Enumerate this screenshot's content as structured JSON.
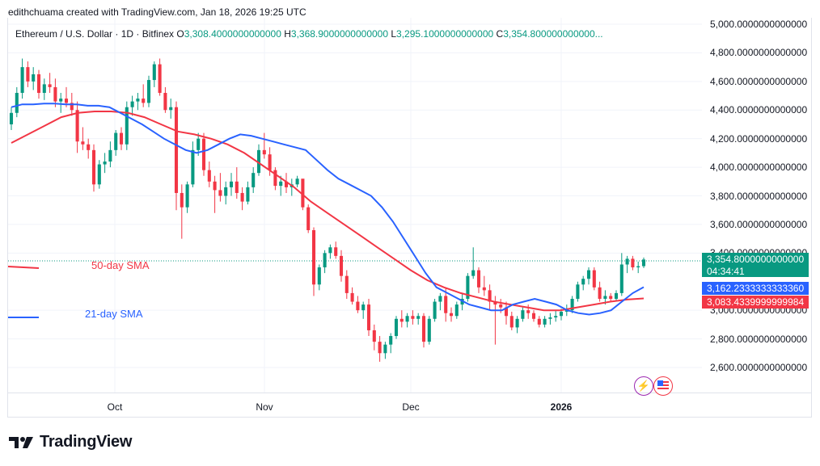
{
  "header": {
    "credit": "edithchuama created with TradingView.com, Jan 18, 2026 19:25 UTC"
  },
  "legend": {
    "symbol": "Ethereum / U.S. Dollar · 1D · Bitfinex",
    "o_label": "O",
    "o_value": "3,308.4000000000000",
    "h_label": "H",
    "h_value": "3,368.9000000000000",
    "l_label": "L",
    "l_value": "3,295.1000000000000",
    "c_label": "C",
    "c_value": "3,354.800000000000..."
  },
  "sma_labels": {
    "sma50": "50-day SMA",
    "sma21": "21-day SMA"
  },
  "price_tags": {
    "last_price": "3,354.8000000000000",
    "countdown": "04:34:41",
    "sma21_value": "3,162.2333333333360",
    "sma50_value": "3,083.4339999999984"
  },
  "colors": {
    "up": "#089981",
    "down": "#f23645",
    "sma21": "#2962ff",
    "sma50": "#f23645",
    "grid": "#f0f3fa"
  },
  "icons": {
    "lightning": "lightning-icon",
    "flag": "us-flag-icon"
  },
  "brand": {
    "logo_text": "TradingView"
  },
  "chart_data": {
    "type": "candlestick",
    "title": "Ethereum / U.S. Dollar · 1D · Bitfinex",
    "ylim": [
      2500,
      5000
    ],
    "y_ticks": [
      "5,000.0000000000000",
      "4,800.0000000000000",
      "4,600.0000000000000",
      "4,400.0000000000000",
      "4,200.0000000000000",
      "4,000.0000000000000",
      "3,800.0000000000000",
      "3,600.0000000000000",
      "3,400.0000000000000",
      "3,000.0000000000000",
      "2,800.0000000000000",
      "2,600.0000000000000"
    ],
    "x_ticks": [
      "Oct",
      "Nov",
      "Dec",
      "2026"
    ],
    "candles": [
      [
        4300,
        4420,
        4260,
        4380
      ],
      [
        4380,
        4560,
        4350,
        4520
      ],
      [
        4520,
        4760,
        4480,
        4700
      ],
      [
        4700,
        4740,
        4560,
        4600
      ],
      [
        4600,
        4700,
        4540,
        4650
      ],
      [
        4650,
        4680,
        4480,
        4520
      ],
      [
        4520,
        4620,
        4470,
        4580
      ],
      [
        4580,
        4660,
        4520,
        4560
      ],
      [
        4560,
        4620,
        4420,
        4460
      ],
      [
        4460,
        4520,
        4380,
        4480
      ],
      [
        4480,
        4560,
        4420,
        4450
      ],
      [
        4450,
        4520,
        4360,
        4400
      ],
      [
        4400,
        4460,
        4100,
        4180
      ],
      [
        4180,
        4280,
        4120,
        4160
      ],
      [
        4160,
        4200,
        4060,
        4120
      ],
      [
        4120,
        4160,
        3830,
        3880
      ],
      [
        3880,
        4050,
        3850,
        4020
      ],
      [
        4020,
        4100,
        3960,
        4040
      ],
      [
        4040,
        4180,
        4000,
        4120
      ],
      [
        4120,
        4260,
        4080,
        4240
      ],
      [
        4240,
        4280,
        4120,
        4160
      ],
      [
        4160,
        4460,
        4120,
        4420
      ],
      [
        4420,
        4500,
        4360,
        4460
      ],
      [
        4460,
        4520,
        4400,
        4480
      ],
      [
        4480,
        4580,
        4420,
        4450
      ],
      [
        4450,
        4640,
        4420,
        4610
      ],
      [
        4610,
        4740,
        4560,
        4720
      ],
      [
        4720,
        4760,
        4500,
        4520
      ],
      [
        4520,
        4560,
        4380,
        4400
      ],
      [
        4400,
        4480,
        4340,
        4420
      ],
      [
        4420,
        4460,
        3700,
        3820
      ],
      [
        3820,
        3880,
        3500,
        3720
      ],
      [
        3720,
        3900,
        3680,
        3880
      ],
      [
        3880,
        4180,
        3860,
        4120
      ],
      [
        4120,
        4240,
        4080,
        4200
      ],
      [
        4200,
        4240,
        3940,
        3980
      ],
      [
        3980,
        4040,
        3860,
        3900
      ],
      [
        3900,
        3940,
        3680,
        3840
      ],
      [
        3840,
        3960,
        3760,
        3800
      ],
      [
        3800,
        3900,
        3740,
        3860
      ],
      [
        3860,
        3960,
        3800,
        3900
      ],
      [
        3900,
        4000,
        3780,
        3820
      ],
      [
        3820,
        3860,
        3700,
        3760
      ],
      [
        3760,
        3900,
        3740,
        3860
      ],
      [
        3860,
        4000,
        3820,
        3960
      ],
      [
        3960,
        4160,
        3940,
        4120
      ],
      [
        4120,
        4240,
        4060,
        4090
      ],
      [
        4090,
        4140,
        3940,
        3980
      ],
      [
        3980,
        4000,
        3840,
        3870
      ],
      [
        3870,
        3940,
        3800,
        3900
      ],
      [
        3900,
        3960,
        3820,
        3860
      ],
      [
        3860,
        3920,
        3800,
        3880
      ],
      [
        3880,
        3940,
        3860,
        3920
      ],
      [
        3920,
        3900,
        3700,
        3720
      ],
      [
        3720,
        3740,
        3540,
        3560
      ],
      [
        3560,
        3580,
        3100,
        3180
      ],
      [
        3180,
        3320,
        3140,
        3300
      ],
      [
        3300,
        3420,
        3260,
        3400
      ],
      [
        3400,
        3460,
        3360,
        3440
      ],
      [
        3440,
        3480,
        3360,
        3380
      ],
      [
        3380,
        3420,
        3200,
        3240
      ],
      [
        3240,
        3280,
        3080,
        3120
      ],
      [
        3120,
        3160,
        3040,
        3060
      ],
      [
        3060,
        3100,
        2980,
        3000
      ],
      [
        3000,
        3060,
        2940,
        3040
      ],
      [
        3040,
        3080,
        2820,
        2860
      ],
      [
        2860,
        2900,
        2720,
        2780
      ],
      [
        2780,
        2820,
        2640,
        2700
      ],
      [
        2700,
        2780,
        2660,
        2760
      ],
      [
        2760,
        2840,
        2700,
        2820
      ],
      [
        2820,
        2960,
        2800,
        2940
      ],
      [
        2940,
        3000,
        2880,
        2920
      ],
      [
        2920,
        2980,
        2880,
        2960
      ],
      [
        2960,
        3000,
        2900,
        2940
      ],
      [
        2940,
        2980,
        2900,
        2960
      ],
      [
        2960,
        2980,
        2740,
        2780
      ],
      [
        2780,
        2960,
        2760,
        2940
      ],
      [
        2940,
        3080,
        2920,
        3060
      ],
      [
        3060,
        3120,
        3000,
        3100
      ],
      [
        3100,
        3160,
        2920,
        2980
      ],
      [
        2980,
        3020,
        2920,
        2960
      ],
      [
        2960,
        3060,
        2940,
        3040
      ],
      [
        3040,
        3120,
        3000,
        3080
      ],
      [
        3080,
        3260,
        3060,
        3240
      ],
      [
        3240,
        3440,
        3220,
        3280
      ],
      [
        3280,
        3300,
        3120,
        3160
      ],
      [
        3160,
        3240,
        3100,
        3140
      ],
      [
        3140,
        3180,
        3000,
        3060
      ],
      [
        3060,
        3100,
        2760,
        3040
      ],
      [
        3040,
        3080,
        2980,
        3020
      ],
      [
        3020,
        3060,
        2900,
        2960
      ],
      [
        2960,
        2990,
        2860,
        2880
      ],
      [
        2880,
        2960,
        2840,
        2940
      ],
      [
        2940,
        3020,
        2920,
        3000
      ],
      [
        3000,
        3040,
        2940,
        2980
      ],
      [
        2980,
        3000,
        2920,
        2940
      ],
      [
        2940,
        2960,
        2880,
        2900
      ],
      [
        2900,
        2960,
        2880,
        2940
      ],
      [
        2940,
        2980,
        2900,
        2950
      ],
      [
        2950,
        3000,
        2920,
        2960
      ],
      [
        2960,
        3010,
        2930,
        2990
      ],
      [
        2990,
        3040,
        2960,
        3000
      ],
      [
        3000,
        3100,
        2980,
        3080
      ],
      [
        3080,
        3200,
        3060,
        3180
      ],
      [
        3180,
        3240,
        3140,
        3220
      ],
      [
        3220,
        3300,
        3180,
        3280
      ],
      [
        3280,
        3300,
        3140,
        3160
      ],
      [
        3160,
        3200,
        3060,
        3080
      ],
      [
        3080,
        3140,
        3040,
        3100
      ],
      [
        3100,
        3120,
        3060,
        3080
      ],
      [
        3080,
        3140,
        3060,
        3120
      ],
      [
        3120,
        3400,
        3100,
        3320
      ],
      [
        3320,
        3380,
        3260,
        3360
      ],
      [
        3360,
        3380,
        3280,
        3300
      ],
      [
        3300,
        3340,
        3260,
        3308
      ],
      [
        3308.4,
        3368.9,
        3295.1,
        3354.8
      ]
    ],
    "sma21": [
      4420,
      4440,
      4440,
      4445,
      4445,
      4440,
      4440,
      4430,
      4430,
      4420,
      4380,
      4340,
      4300,
      4250,
      4200,
      4160,
      4120,
      4100,
      4120,
      4160,
      4200,
      4230,
      4220,
      4200,
      4180,
      4160,
      4140,
      4120,
      4050,
      3980,
      3920,
      3880,
      3840,
      3800,
      3720,
      3620,
      3500,
      3380,
      3260,
      3160,
      3120,
      3080,
      3040,
      3020,
      3000,
      3000,
      3040,
      3060,
      3080,
      3060,
      3040,
      3000,
      2980,
      2970,
      2980,
      3000,
      3060,
      3120,
      3162
    ],
    "sma50": [
      4170,
      4230,
      4290,
      4350,
      4380,
      4390,
      4390,
      4380,
      4350,
      4300,
      4250,
      4230,
      4200,
      4160,
      4100,
      4020,
      3940,
      3860,
      3760,
      3680,
      3600,
      3520,
      3440,
      3360,
      3280,
      3210,
      3160,
      3120,
      3090,
      3060,
      3040,
      3020,
      3000,
      3000,
      3020,
      3040,
      3060,
      3075,
      3083
    ],
    "series": [
      {
        "name": "50-day SMA",
        "values": [
          4170,
          4230,
          4290,
          4350,
          4380,
          4390,
          4390,
          4380,
          4350,
          4300,
          4250,
          4230,
          4200,
          4160,
          4100,
          4020,
          3940,
          3860,
          3760,
          3680,
          3600,
          3520,
          3440,
          3360,
          3280,
          3210,
          3160,
          3120,
          3090,
          3060,
          3040,
          3020,
          3000,
          3000,
          3020,
          3040,
          3060,
          3075,
          3083
        ]
      },
      {
        "name": "21-day SMA",
        "values": [
          4420,
          4440,
          4440,
          4445,
          4445,
          4440,
          4440,
          4430,
          4430,
          4420,
          4380,
          4340,
          4300,
          4250,
          4200,
          4160,
          4120,
          4100,
          4120,
          4160,
          4200,
          4230,
          4220,
          4200,
          4180,
          4160,
          4140,
          4120,
          4050,
          3980,
          3920,
          3880,
          3840,
          3800,
          3720,
          3620,
          3500,
          3380,
          3260,
          3160,
          3120,
          3080,
          3040,
          3020,
          3000,
          3000,
          3040,
          3060,
          3080,
          3060,
          3040,
          3000,
          2980,
          2970,
          2980,
          3000,
          3060,
          3120,
          3162
        ]
      }
    ]
  }
}
